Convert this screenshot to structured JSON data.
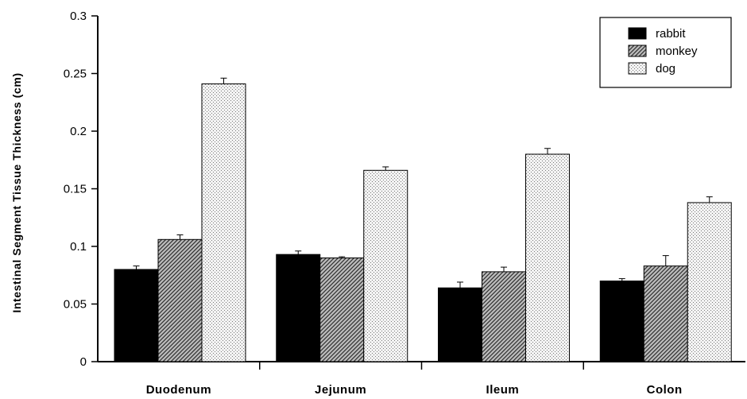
{
  "chart_data": {
    "type": "bar",
    "title": "",
    "xlabel": "",
    "ylabel": "Intestinal Segment Tissue Thickness (cm)",
    "categories": [
      "Duodenum",
      "Jejunum",
      "Ileum",
      "Colon"
    ],
    "ylim": [
      0,
      0.3
    ],
    "yticks": [
      "0",
      "0.05",
      "0.1",
      "0.15",
      "0.2",
      "0.25",
      "0.3"
    ],
    "grid": false,
    "legend_position": "top-right",
    "series": [
      {
        "name": "rabbit",
        "values": [
          0.08,
          0.093,
          0.064,
          0.07
        ],
        "errors": [
          0.003,
          0.003,
          0.005,
          0.002
        ],
        "pattern": "solid-black"
      },
      {
        "name": "monkey",
        "values": [
          0.106,
          0.09,
          0.078,
          0.083
        ],
        "errors": [
          0.004,
          0.001,
          0.004,
          0.009
        ],
        "pattern": "diagonal-hatch"
      },
      {
        "name": "dog",
        "values": [
          0.241,
          0.166,
          0.18,
          0.138
        ],
        "errors": [
          0.005,
          0.003,
          0.005,
          0.005
        ],
        "pattern": "light-stipple"
      }
    ]
  }
}
